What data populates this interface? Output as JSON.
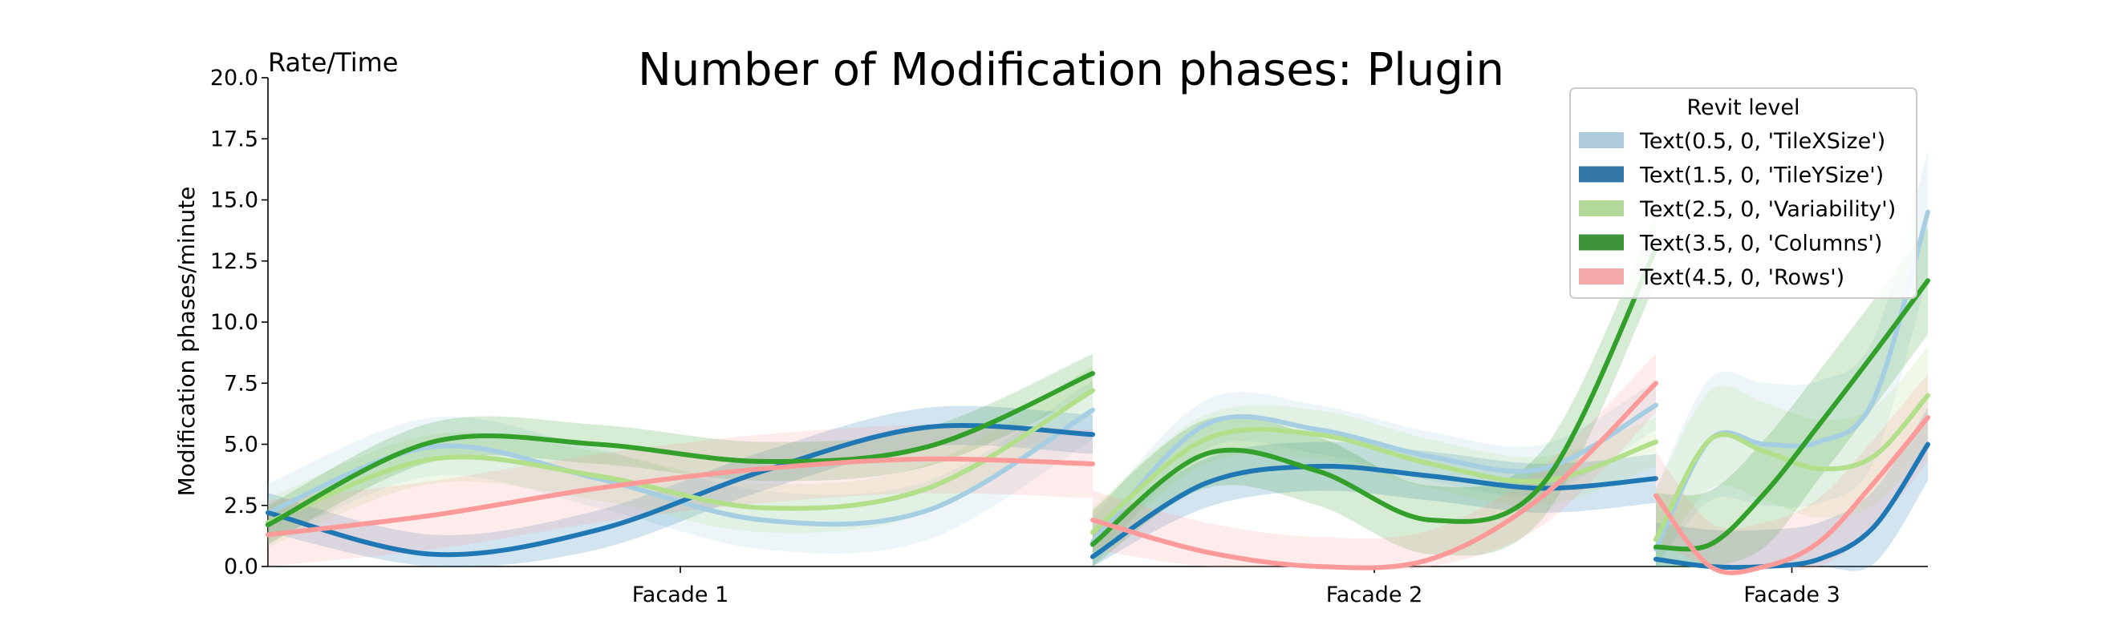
{
  "chart_data": {
    "type": "line",
    "title": "Number of Modification phases: Plugin",
    "corner_label": "Rate/Time",
    "ylabel": "Modification phases/minute",
    "xlabel": "",
    "ylim": [
      0,
      20
    ],
    "yticks": [
      "0.0",
      "2.5",
      "5.0",
      "7.5",
      "10.0",
      "12.5",
      "15.0",
      "17.5",
      "20.0"
    ],
    "grid": false,
    "legend": {
      "title": "Revit level",
      "placement": "top-right",
      "entries": [
        "Text(0.5, 0, 'TileXSize')",
        "Text(1.5, 0, 'TileYSize')",
        "Text(2.5, 0, 'Variability')",
        "Text(3.5, 0, 'Columns')",
        "Text(4.5, 0, 'Rows')"
      ]
    },
    "colors": {
      "TileXSize": "#a6cee3",
      "TileYSize": "#1f78b4",
      "Variability": "#b2df8a",
      "Columns": "#33a02c",
      "Rows": "#fb9a99",
      "legend_patches": [
        "#aecbdc",
        "#3277a8",
        "#b2d99a",
        "#3d943a",
        "#f2a9a8"
      ]
    },
    "facets": [
      {
        "label": "Facade 1",
        "x_range": [
          0,
          1
        ],
        "series": [
          {
            "key": "TileXSize",
            "x": [
              0,
              0.2,
              0.4,
              0.6,
              0.8,
              1.0
            ],
            "y": [
              2.2,
              4.9,
              3.6,
              1.9,
              2.3,
              6.4
            ],
            "ci": 1.2
          },
          {
            "key": "TileYSize",
            "x": [
              0,
              0.2,
              0.4,
              0.6,
              0.8,
              1.0
            ],
            "y": [
              2.2,
              0.5,
              1.5,
              3.9,
              5.7,
              5.4
            ],
            "ci": 0.8
          },
          {
            "key": "Variability",
            "x": [
              0,
              0.2,
              0.4,
              0.6,
              0.8,
              1.0
            ],
            "y": [
              1.8,
              4.4,
              3.7,
              2.4,
              3.2,
              7.2
            ],
            "ci": 1.0
          },
          {
            "key": "Columns",
            "x": [
              0,
              0.2,
              0.4,
              0.6,
              0.8,
              1.0
            ],
            "y": [
              1.7,
              5.1,
              5.0,
              4.3,
              4.9,
              7.9
            ],
            "ci": 0.8
          },
          {
            "key": "Rows",
            "x": [
              0,
              0.2,
              0.4,
              0.6,
              0.8,
              1.0
            ],
            "y": [
              1.3,
              2.1,
              3.2,
              4.0,
              4.4,
              4.2
            ],
            "ci": 1.4
          }
        ]
      },
      {
        "label": "Facade 2",
        "x_range": [
          0,
          1
        ],
        "series": [
          {
            "key": "TileXSize",
            "x": [
              0,
              0.2,
              0.4,
              0.6,
              0.8,
              1.0
            ],
            "y": [
              1.0,
              5.8,
              5.6,
              4.5,
              4.0,
              6.6
            ],
            "ci": 1.0
          },
          {
            "key": "TileYSize",
            "x": [
              0,
              0.2,
              0.4,
              0.6,
              0.8,
              1.0
            ],
            "y": [
              0.4,
              3.4,
              4.1,
              3.7,
              3.2,
              3.6
            ],
            "ci": 1.0
          },
          {
            "key": "Variability",
            "x": [
              0,
              0.2,
              0.4,
              0.6,
              0.8,
              1.0
            ],
            "y": [
              1.4,
              5.2,
              5.4,
              4.2,
              3.5,
              5.1
            ],
            "ci": 1.0
          },
          {
            "key": "Columns",
            "x": [
              0,
              0.2,
              0.4,
              0.6,
              0.8,
              1.0
            ],
            "y": [
              0.9,
              4.6,
              3.9,
              1.9,
              3.4,
              13.0
            ],
            "ci": 1.4
          },
          {
            "key": "Rows",
            "x": [
              0,
              0.2,
              0.4,
              0.6,
              0.8,
              1.0
            ],
            "y": [
              1.9,
              0.6,
              0.0,
              0.3,
              2.9,
              7.5
            ],
            "ci": 1.2
          }
        ]
      },
      {
        "label": "Facade 3",
        "x_range": [
          0,
          1
        ],
        "series": [
          {
            "key": "TileXSize",
            "x": [
              0,
              0.2,
              0.4,
              0.6,
              0.8,
              1.0
            ],
            "y": [
              0.7,
              5.2,
              5.0,
              5.1,
              6.8,
              14.5
            ],
            "ci": 2.5
          },
          {
            "key": "TileYSize",
            "x": [
              0,
              0.2,
              0.4,
              0.6,
              0.8,
              1.0
            ],
            "y": [
              0.3,
              0.0,
              0.0,
              0.3,
              1.6,
              5.0
            ],
            "ci": 1.5
          },
          {
            "key": "Variability",
            "x": [
              0,
              0.2,
              0.4,
              0.6,
              0.8,
              1.0
            ],
            "y": [
              1.1,
              5.2,
              4.7,
              4.0,
              4.5,
              7.0
            ],
            "ci": 2.0
          },
          {
            "key": "Columns",
            "x": [
              0,
              0.2,
              0.4,
              0.6,
              0.8,
              1.0
            ],
            "y": [
              0.8,
              0.9,
              3.0,
              5.8,
              8.7,
              11.7
            ],
            "ci": 2.2
          },
          {
            "key": "Rows",
            "x": [
              0,
              0.2,
              0.4,
              0.6,
              0.8,
              1.0
            ],
            "y": [
              2.9,
              0.0,
              0.0,
              1.0,
              3.4,
              6.1
            ],
            "ci": 1.8
          }
        ]
      }
    ]
  }
}
